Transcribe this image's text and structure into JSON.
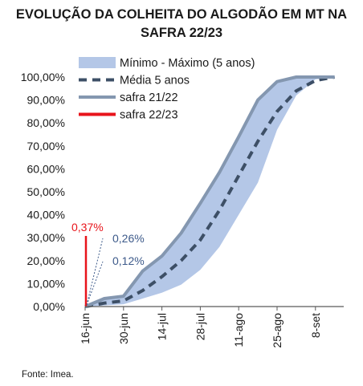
{
  "chart_data": {
    "type": "line",
    "title_lines": [
      "EVOLUÇÃO DA COLHEITA DO ALGODÃO EM MT NA",
      "SAFRA 22/23"
    ],
    "source": "Fonte: Imea.",
    "y_ticks": [
      "0,00%",
      "10,00%",
      "20,00%",
      "30,00%",
      "40,00%",
      "50,00%",
      "60,00%",
      "70,00%",
      "80,00%",
      "90,00%",
      "100,00%"
    ],
    "ylim": [
      0,
      100
    ],
    "x_ticks": [
      {
        "label": "16-jun",
        "week": 0
      },
      {
        "label": "30-jun",
        "week": 2
      },
      {
        "label": "14-jul",
        "week": 4
      },
      {
        "label": "28-jul",
        "week": 6
      },
      {
        "label": "11-ago",
        "week": 8
      },
      {
        "label": "25-ago",
        "week": 10
      },
      {
        "label": "8-set",
        "week": 12
      }
    ],
    "legend": [
      {
        "name": "Mínimo - Máximo (5 anos)",
        "style": "band",
        "color": "#b4c7e7"
      },
      {
        "name": "Média 5 anos",
        "style": "dashed",
        "color": "#3d4f66"
      },
      {
        "name": "safra 21/22",
        "style": "solid",
        "color": "#8497b0"
      },
      {
        "name": "safra 22/23",
        "style": "solid",
        "color": "#e8141b"
      }
    ],
    "band": {
      "x": [
        "16-jun",
        "23-jun",
        "30-jun",
        "07-jul",
        "14-jul",
        "21-jul",
        "28-jul",
        "04-ago",
        "11-ago",
        "18-ago",
        "25-ago",
        "01-set",
        "08-set",
        "15-set"
      ],
      "min": [
        0,
        0.5,
        1.0,
        3.5,
        6,
        9.5,
        16,
        26,
        40,
        54,
        77,
        92,
        99,
        100
      ],
      "max": [
        0,
        4,
        5,
        16,
        22,
        32,
        45,
        59,
        74,
        90,
        98,
        100,
        100,
        100
      ]
    },
    "series": [
      {
        "name": "Média 5 anos",
        "x": [
          "16-jun",
          "23-jun",
          "30-jun",
          "07-jul",
          "14-jul",
          "21-jul",
          "28-jul",
          "04-ago",
          "11-ago",
          "18-ago",
          "25-ago",
          "01-set",
          "08-set",
          "15-set"
        ],
        "values": [
          0,
          1.5,
          2.5,
          7,
          13,
          20,
          29,
          42,
          57,
          72,
          85,
          94,
          98.5,
          100
        ]
      },
      {
        "name": "safra 21/22",
        "x": [
          "16-jun",
          "23-jun",
          "30-jun",
          "07-jul",
          "14-jul",
          "21-jul",
          "28-jul",
          "04-ago",
          "11-ago",
          "18-ago",
          "25-ago",
          "01-set",
          "08-set",
          "15-set"
        ],
        "values": [
          0,
          3.5,
          4.5,
          15.5,
          22,
          32,
          45,
          58.5,
          74,
          90,
          98,
          100,
          100,
          100
        ]
      },
      {
        "name": "safra 22/23",
        "x": [
          "16-jun"
        ],
        "values": [
          0.37
        ]
      }
    ],
    "annotations": [
      {
        "text": "0,37%",
        "color": "#e8141b",
        "series": "safra 22/23",
        "value": 0.37
      },
      {
        "text": "0,26%",
        "color": "#3d5a8a",
        "series": "Média 5 anos",
        "value": 0.26
      },
      {
        "text": "0,12%",
        "color": "#3d5a8a",
        "series": "safra 21/22",
        "value": 0.12
      }
    ]
  }
}
